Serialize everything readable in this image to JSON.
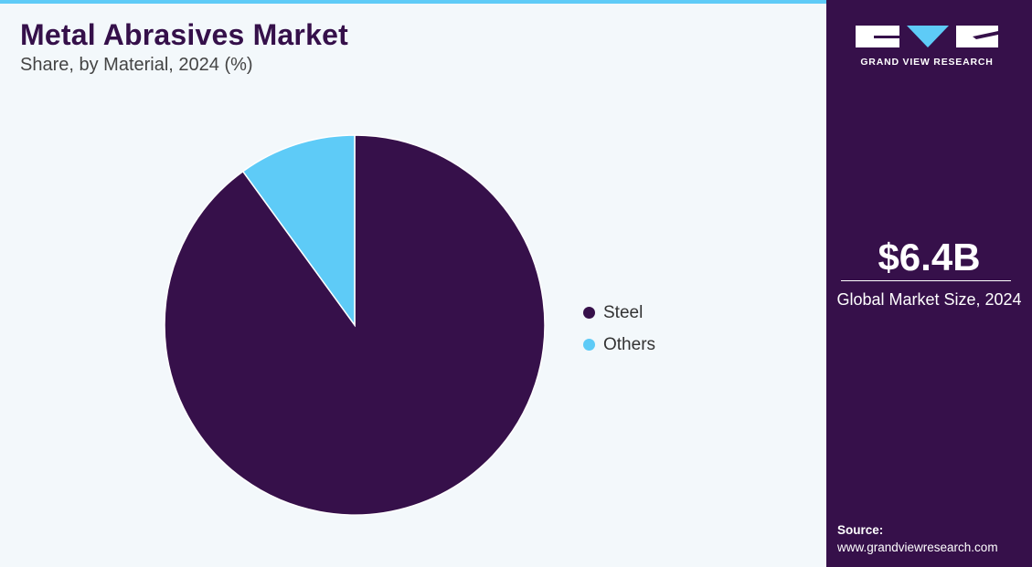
{
  "title": "Metal Abrasives Market",
  "subtitle": "Share, by Material, 2024 (%)",
  "colors": {
    "steel": "#36104a",
    "others": "#5ecbf7",
    "accent": "#5ecbf7",
    "sidebar": "#36104a",
    "background": "#f3f8fb"
  },
  "chart_data": {
    "type": "pie",
    "title": "Metal Abrasives Market",
    "subtitle": "Share, by Material, 2024 (%)",
    "categories": [
      "Steel",
      "Others"
    ],
    "values": [
      90,
      10
    ],
    "colors": [
      "#36104a",
      "#5ecbf7"
    ],
    "legend_position": "right"
  },
  "legend": [
    {
      "label": "Steel",
      "color": "#36104a"
    },
    {
      "label": "Others",
      "color": "#5ecbf7"
    }
  ],
  "sidebar": {
    "logo_text": "GRAND VIEW RESEARCH",
    "market_value": "$6.4B",
    "market_label": "Global Market Size, 2024",
    "source_label": "Source:",
    "source_url": "www.grandviewresearch.com"
  }
}
